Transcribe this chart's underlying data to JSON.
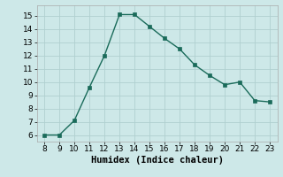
{
  "x": [
    8,
    9,
    10,
    11,
    12,
    13,
    14,
    15,
    16,
    17,
    18,
    19,
    20,
    21,
    22,
    23
  ],
  "y": [
    6.0,
    6.0,
    7.1,
    9.6,
    12.0,
    15.1,
    15.1,
    14.2,
    13.3,
    12.5,
    11.3,
    10.5,
    9.8,
    10.0,
    8.6,
    8.5
  ],
  "xlabel": "Humidex (Indice chaleur)",
  "xlim": [
    7.5,
    23.5
  ],
  "ylim": [
    5.5,
    15.8
  ],
  "xticks": [
    8,
    9,
    10,
    11,
    12,
    13,
    14,
    15,
    16,
    17,
    18,
    19,
    20,
    21,
    22,
    23
  ],
  "yticks": [
    6,
    7,
    8,
    9,
    10,
    11,
    12,
    13,
    14,
    15
  ],
  "line_color": "#1a6b5a",
  "marker_color": "#1a6b5a",
  "bg_color": "#cde8e8",
  "grid_color": "#b0d0d0",
  "tick_fontsize": 6.5,
  "label_fontsize": 7.5
}
